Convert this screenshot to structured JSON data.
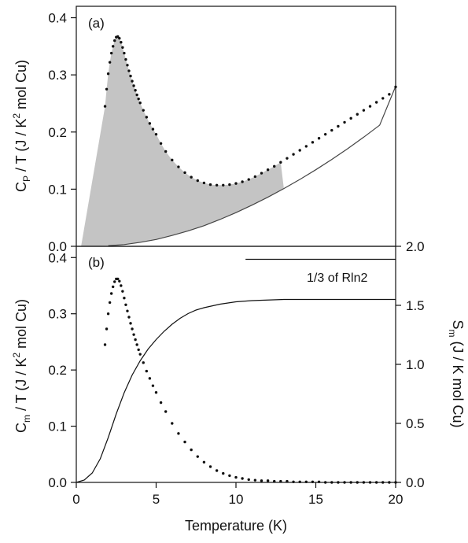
{
  "chart_data": [
    {
      "panel": "(a)",
      "type": "scatter",
      "ylabel": {
        "main": "C",
        "sub": "P",
        "rest": " / T (J / K",
        "sup": "2",
        "end": " mol Cu)"
      },
      "xlim": [
        0,
        20
      ],
      "ylim": [
        0,
        0.42
      ],
      "yticks": [
        "0.0",
        "0.1",
        "0.2",
        "0.3",
        "0.4"
      ],
      "yticks_v": [
        0,
        0.1,
        0.2,
        0.3,
        0.4
      ],
      "fill_color": "#c4c4c4",
      "series": [
        {
          "style": "dots",
          "x": [
            1.8,
            1.9,
            2.0,
            2.1,
            2.2,
            2.3,
            2.4,
            2.5,
            2.6,
            2.7,
            2.8,
            2.9,
            3.0,
            3.1,
            3.2,
            3.3,
            3.4,
            3.5,
            3.6,
            3.7,
            3.8,
            3.9,
            4.0,
            4.2,
            4.4,
            4.6,
            4.8,
            5.0,
            5.3,
            5.6,
            6.0,
            6.4,
            6.8,
            7.2,
            7.6,
            8.0,
            8.4,
            8.8,
            9.2,
            9.6,
            10.0,
            10.4,
            10.8,
            11.2,
            11.6,
            12.0,
            12.4,
            12.8,
            13.2,
            13.6,
            14.0,
            14.4,
            14.8,
            15.2,
            15.6,
            16.0,
            16.4,
            16.8,
            17.2,
            17.6,
            18.0,
            18.4,
            18.8,
            19.2,
            19.6,
            20.0
          ],
          "y": [
            0.245,
            0.275,
            0.302,
            0.322,
            0.338,
            0.35,
            0.36,
            0.366,
            0.367,
            0.364,
            0.357,
            0.348,
            0.338,
            0.327,
            0.317,
            0.307,
            0.298,
            0.289,
            0.281,
            0.273,
            0.265,
            0.258,
            0.251,
            0.238,
            0.226,
            0.215,
            0.205,
            0.196,
            0.18,
            0.166,
            0.151,
            0.139,
            0.129,
            0.121,
            0.115,
            0.111,
            0.108,
            0.107,
            0.107,
            0.108,
            0.11,
            0.113,
            0.117,
            0.122,
            0.128,
            0.134,
            0.14,
            0.147,
            0.154,
            0.161,
            0.168,
            0.175,
            0.182,
            0.189,
            0.196,
            0.203,
            0.21,
            0.217,
            0.224,
            0.231,
            0.238,
            0.245,
            0.252,
            0.259,
            0.266,
            0.279
          ]
        },
        {
          "style": "line",
          "x": [
            0,
            2,
            3,
            4,
            5,
            6,
            7,
            8,
            9,
            10,
            11,
            12,
            13,
            14,
            15,
            16,
            17,
            18,
            19,
            20
          ],
          "y": [
            0,
            0.001,
            0.003,
            0.007,
            0.012,
            0.019,
            0.027,
            0.036,
            0.047,
            0.059,
            0.072,
            0.086,
            0.101,
            0.117,
            0.134,
            0.152,
            0.171,
            0.191,
            0.212,
            0.28
          ]
        }
      ]
    },
    {
      "panel": "(b)",
      "type": "scatter",
      "ylabel_left": {
        "main": "C",
        "sub": "m",
        "rest": " / T (J / K",
        "sup": "2",
        "end": " mol Cu)"
      },
      "ylabel_right": {
        "main": "S",
        "sub": "m",
        "rest": " (J / K mol Cu)"
      },
      "xlabel": "Temperature (K)",
      "xlim": [
        0,
        20
      ],
      "xticks": [
        "0",
        "5",
        "10",
        "15",
        "20"
      ],
      "xticks_v": [
        0,
        5,
        10,
        15,
        20
      ],
      "ylim_left": [
        0,
        0.42
      ],
      "yticks_left": [
        "0.0",
        "0.1",
        "0.2",
        "0.3",
        "0.4"
      ],
      "yticks_left_v": [
        0,
        0.1,
        0.2,
        0.3,
        0.4
      ],
      "ylim_right": [
        0,
        2.0
      ],
      "yticks_right": [
        "0.0",
        "0.5",
        "1.0",
        "1.5",
        "2.0"
      ],
      "yticks_right_v": [
        0,
        0.5,
        1.0,
        1.5,
        2.0
      ],
      "annotation": "1/3 of Rln2",
      "reference_line": {
        "x": [
          10.6,
          20
        ],
        "y_right": 1.89
      },
      "series": [
        {
          "style": "dots",
          "axis": "left",
          "x": [
            1.8,
            1.9,
            2.0,
            2.1,
            2.2,
            2.3,
            2.4,
            2.5,
            2.6,
            2.7,
            2.8,
            2.9,
            3.0,
            3.1,
            3.2,
            3.3,
            3.4,
            3.5,
            3.6,
            3.7,
            3.8,
            3.9,
            4.0,
            4.2,
            4.4,
            4.6,
            4.8,
            5.0,
            5.3,
            5.6,
            6.0,
            6.4,
            6.8,
            7.2,
            7.6,
            8.0,
            8.4,
            8.8,
            9.2,
            9.6,
            10.0,
            10.4,
            10.8,
            11.2,
            11.6,
            12.0,
            12.4,
            12.8,
            13.2,
            13.6,
            14.0,
            14.4,
            14.8,
            15.2,
            15.6,
            16.0,
            16.4,
            16.8,
            17.2,
            17.6,
            18.0,
            18.4,
            18.8,
            19.2,
            19.6,
            20.0
          ],
          "y": [
            0.245,
            0.273,
            0.3,
            0.32,
            0.336,
            0.348,
            0.357,
            0.362,
            0.362,
            0.358,
            0.35,
            0.34,
            0.328,
            0.316,
            0.305,
            0.294,
            0.283,
            0.273,
            0.263,
            0.254,
            0.245,
            0.236,
            0.228,
            0.213,
            0.198,
            0.185,
            0.172,
            0.16,
            0.142,
            0.126,
            0.105,
            0.087,
            0.072,
            0.058,
            0.046,
            0.036,
            0.028,
            0.021,
            0.016,
            0.012,
            0.009,
            0.007,
            0.005,
            0.004,
            0.003,
            0.003,
            0.002,
            0.002,
            0.002,
            0.001,
            0.001,
            0.001,
            0.001,
            0.001,
            0.0,
            0.0,
            0.0,
            0.0,
            0.0,
            0.0,
            0.0,
            0.0,
            0.0,
            0.0,
            0.0,
            0.0
          ]
        },
        {
          "style": "line",
          "axis": "right",
          "x": [
            0,
            0.5,
            1,
            1.5,
            2,
            2.5,
            3,
            3.5,
            4,
            4.5,
            5,
            5.5,
            6,
            6.5,
            7,
            7.5,
            8,
            9,
            10,
            11,
            12,
            13,
            14,
            15,
            16,
            17,
            18,
            19,
            20
          ],
          "y": [
            0,
            0.02,
            0.08,
            0.2,
            0.38,
            0.58,
            0.76,
            0.91,
            1.03,
            1.13,
            1.21,
            1.28,
            1.34,
            1.39,
            1.43,
            1.46,
            1.48,
            1.51,
            1.53,
            1.54,
            1.545,
            1.55,
            1.55,
            1.55,
            1.55,
            1.55,
            1.55,
            1.55,
            1.55
          ]
        }
      ]
    }
  ]
}
